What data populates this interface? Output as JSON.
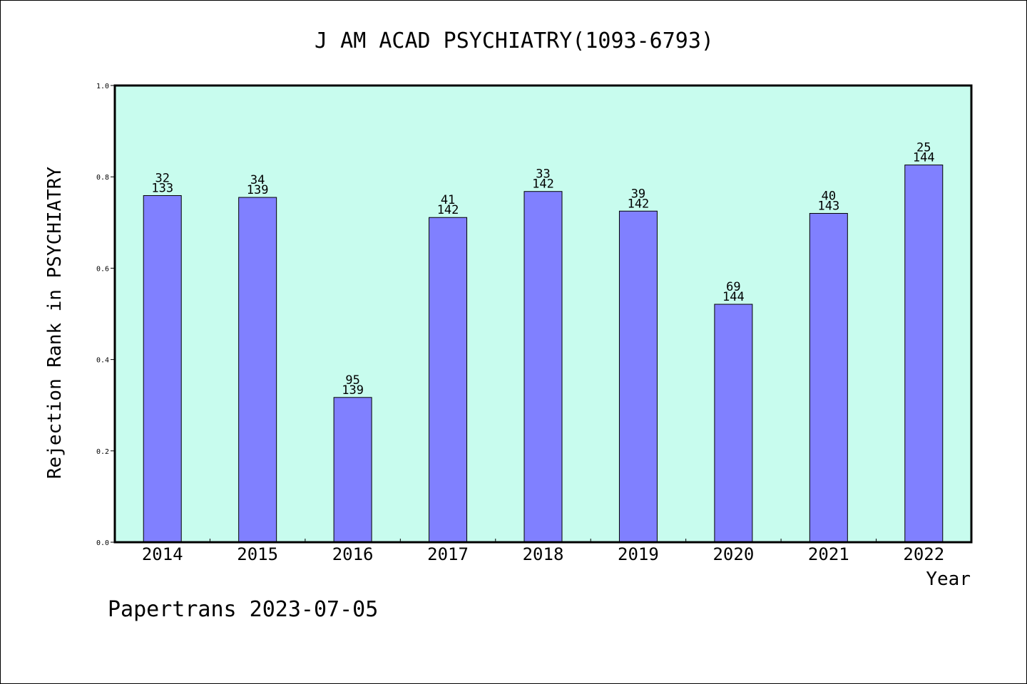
{
  "chart_data": {
    "type": "bar",
    "title": "J AM ACAD PSYCHIATRY(1093-6793)",
    "xlabel": "Year",
    "ylabel": "Rejection Rank in PSYCHIATRY",
    "ylim": [
      0,
      1.0
    ],
    "yticks": [
      "0.0",
      "0.2",
      "0.4",
      "0.6",
      "0.8",
      "1.0"
    ],
    "grid": false,
    "categories": [
      "2014",
      "2015",
      "2016",
      "2017",
      "2018",
      "2019",
      "2020",
      "2021",
      "2022"
    ],
    "values": [
      0.759,
      0.755,
      0.317,
      0.711,
      0.768,
      0.725,
      0.521,
      0.72,
      0.826
    ],
    "ranks": [
      "32",
      "34",
      "95",
      "41",
      "33",
      "39",
      "69",
      "40",
      "25"
    ],
    "totals": [
      "133",
      "139",
      "139",
      "142",
      "142",
      "142",
      "144",
      "143",
      "144"
    ],
    "colors": {
      "bar": "#8080ff",
      "plot_bg": "#c8fcee",
      "outline": "#000000"
    }
  },
  "footer": "Papertrans 2023-07-05"
}
